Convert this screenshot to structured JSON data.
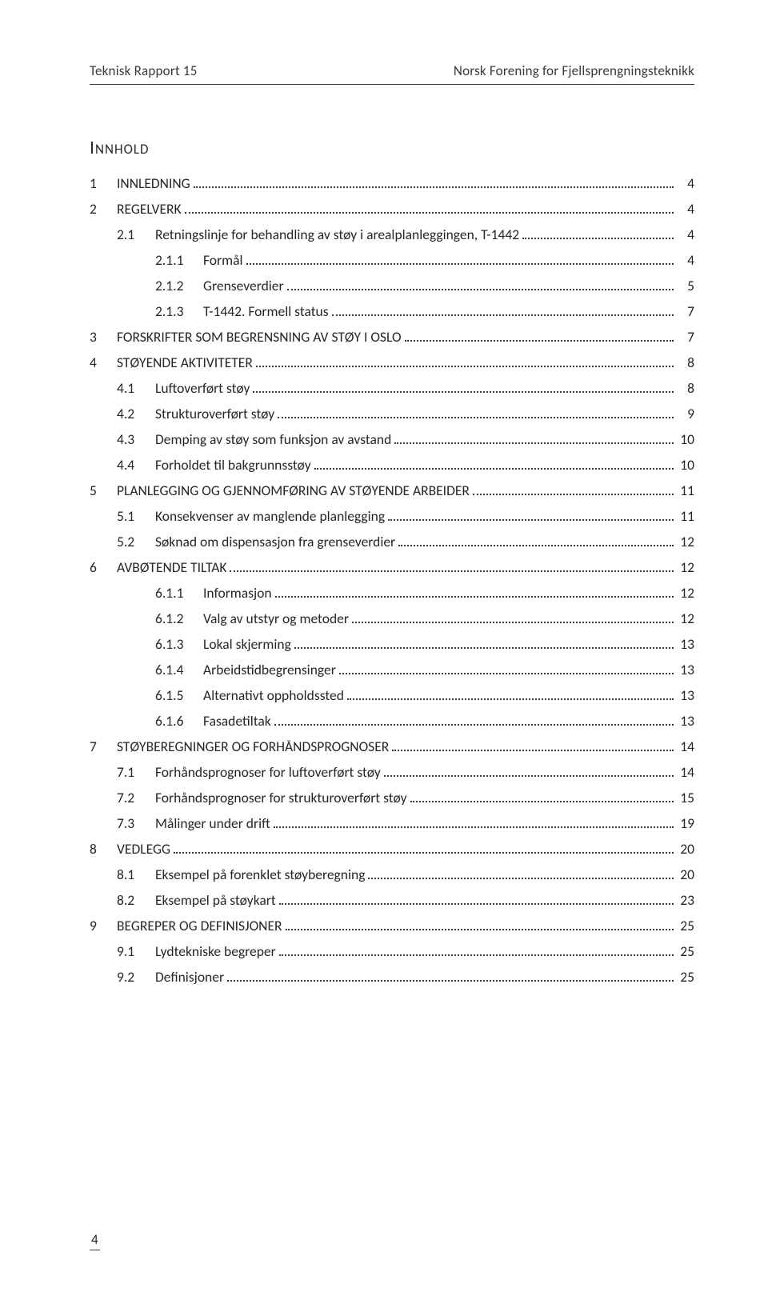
{
  "header": {
    "left": "Teknisk Rapport 15",
    "right": "Norsk Forening for Fjellsprengningsteknikk"
  },
  "toc_title": "Innhold",
  "page_number": "4",
  "entries": [
    {
      "level": 1,
      "num": "1",
      "label": "INNLEDNING",
      "page": "4"
    },
    {
      "level": 1,
      "num": "2",
      "label": "REGELVERK",
      "page": "4"
    },
    {
      "level": 2,
      "num": "2.1",
      "label": "Retningslinje for behandling av støy i arealplanleggingen, T-1442",
      "page": "4"
    },
    {
      "level": 3,
      "num": "2.1.1",
      "label": "Formål",
      "page": "4"
    },
    {
      "level": 3,
      "num": "2.1.2",
      "label": "Grenseverdier",
      "page": "5"
    },
    {
      "level": 3,
      "num": "2.1.3",
      "label": "T-1442. Formell status",
      "page": "7"
    },
    {
      "level": 1,
      "num": "3",
      "label": "FORSKRIFTER SOM BEGRENSNING AV STØY I OSLO",
      "page": "7"
    },
    {
      "level": 1,
      "num": "4",
      "label": "STØYENDE AKTIVITETER",
      "page": "8"
    },
    {
      "level": 2,
      "num": "4.1",
      "label": "Luftoverført støy",
      "page": "8"
    },
    {
      "level": 2,
      "num": "4.2",
      "label": "Strukturoverført støy",
      "page": "9"
    },
    {
      "level": 2,
      "num": "4.3",
      "label": "Demping av støy som funksjon av avstand",
      "page": "10"
    },
    {
      "level": 2,
      "num": "4.4",
      "label": "Forholdet til bakgrunnsstøy",
      "page": "10"
    },
    {
      "level": 1,
      "num": "5",
      "label": "PLANLEGGING OG GJENNOMFØRING AV STØYENDE ARBEIDER",
      "page": "11"
    },
    {
      "level": 2,
      "num": "5.1",
      "label": "Konsekvenser av manglende planlegging",
      "page": "11"
    },
    {
      "level": 2,
      "num": "5.2",
      "label": "Søknad om dispensasjon fra grenseverdier",
      "page": "12"
    },
    {
      "level": 1,
      "num": "6",
      "label": "AVBØTENDE TILTAK",
      "page": "12"
    },
    {
      "level": 3,
      "num": "6.1.1",
      "label": "Informasjon",
      "page": "12"
    },
    {
      "level": 3,
      "num": "6.1.2",
      "label": "Valg av utstyr og metoder",
      "page": "12"
    },
    {
      "level": 3,
      "num": "6.1.3",
      "label": "Lokal skjerming",
      "page": "13"
    },
    {
      "level": 3,
      "num": "6.1.4",
      "label": "Arbeidstidbegrensinger",
      "page": "13"
    },
    {
      "level": 3,
      "num": "6.1.5",
      "label": "Alternativt oppholdssted",
      "page": "13"
    },
    {
      "level": 3,
      "num": "6.1.6",
      "label": "Fasadetiltak",
      "page": "13"
    },
    {
      "level": 1,
      "num": "7",
      "label": "STØYBEREGNINGER OG FORHÅNDSPROGNOSER",
      "page": "14"
    },
    {
      "level": 2,
      "num": "7.1",
      "label": "Forhåndsprognoser for luftoverført støy",
      "page": "14"
    },
    {
      "level": 2,
      "num": "7.2",
      "label": "Forhåndsprognoser for strukturoverført støy",
      "page": "15"
    },
    {
      "level": 2,
      "num": "7.3",
      "label": "Målinger under drift",
      "page": "19"
    },
    {
      "level": 1,
      "num": "8",
      "label": "VEDLEGG",
      "page": "20"
    },
    {
      "level": 2,
      "num": "8.1",
      "label": "Eksempel på forenklet støyberegning",
      "page": "20"
    },
    {
      "level": 2,
      "num": "8.2",
      "label": "Eksempel på støykart",
      "page": "23"
    },
    {
      "level": 1,
      "num": "9",
      "label": "BEGREPER OG DEFINISJONER",
      "page": "25"
    },
    {
      "level": 2,
      "num": "9.1",
      "label": "Lydtekniske begreper",
      "page": "25"
    },
    {
      "level": 2,
      "num": "9.2",
      "label": "Definisjoner",
      "page": "25"
    }
  ]
}
